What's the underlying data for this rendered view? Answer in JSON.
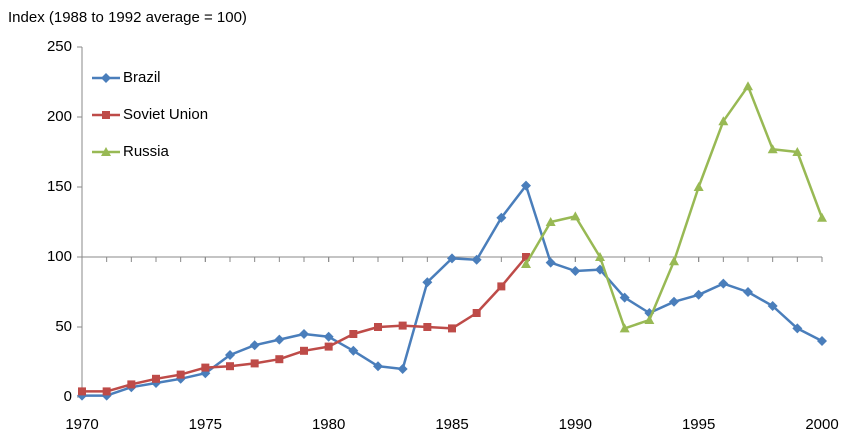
{
  "chart_data": {
    "type": "line",
    "title": "Index (1988 to 1992 average = 100)",
    "x": [
      1970,
      1971,
      1972,
      1973,
      1974,
      1975,
      1976,
      1977,
      1978,
      1979,
      1980,
      1981,
      1982,
      1983,
      1984,
      1985,
      1986,
      1987,
      1988,
      1989,
      1990,
      1991,
      1992,
      1993,
      1994,
      1995,
      1996,
      1997,
      1998,
      1999,
      2000
    ],
    "series": [
      {
        "name": "Brazil",
        "color": "#4a7ebb",
        "marker": "diamond",
        "values": [
          1,
          1,
          7,
          10,
          13,
          17,
          30,
          37,
          41,
          45,
          43,
          33,
          22,
          20,
          82,
          99,
          98,
          128,
          151,
          96,
          90,
          91,
          71,
          60,
          68,
          73,
          81,
          75,
          65,
          49,
          40
        ]
      },
      {
        "name": "Soviet Union",
        "color": "#be4b48",
        "marker": "square",
        "values": [
          4,
          4,
          9,
          13,
          16,
          21,
          22,
          24,
          27,
          33,
          36,
          45,
          50,
          51,
          50,
          49,
          60,
          79,
          100,
          null,
          null,
          null,
          null,
          null,
          null,
          null,
          null,
          null,
          null,
          null,
          null
        ]
      },
      {
        "name": "Russia",
        "color": "#98b954",
        "marker": "triangle",
        "values": [
          null,
          null,
          null,
          null,
          null,
          null,
          null,
          null,
          null,
          null,
          null,
          null,
          null,
          null,
          null,
          null,
          null,
          null,
          95,
          125,
          129,
          100,
          49,
          55,
          97,
          150,
          197,
          222,
          177,
          175,
          128
        ]
      }
    ],
    "xlim": [
      1970,
      2000
    ],
    "xticks": [
      1970,
      1975,
      1980,
      1985,
      1990,
      1995,
      2000
    ],
    "ylim": [
      0,
      250
    ],
    "yticks": [
      0,
      50,
      100,
      150,
      200,
      250
    ],
    "x_axis_crossing": 100,
    "legend": "top-left"
  }
}
